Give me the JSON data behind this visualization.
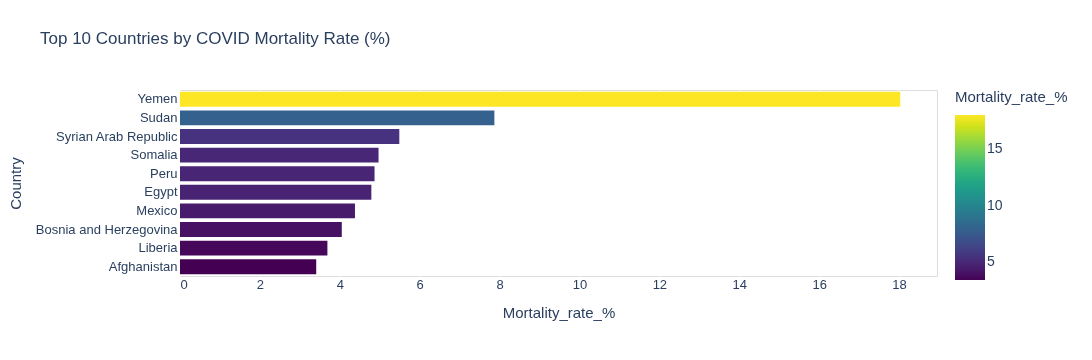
{
  "chart_data": {
    "type": "bar",
    "orientation": "horizontal",
    "title": "Top 10 Countries by COVID Mortality Rate (%)",
    "xlabel": "Mortality_rate_%",
    "ylabel": "Country",
    "clabel": "Mortality_rate_%",
    "categories": [
      "Yemen",
      "Sudan",
      "Syrian Arab Republic",
      "Somalia",
      "Peru",
      "Egypt",
      "Mexico",
      "Bosnia and Herzegovina",
      "Liberia",
      "Afghanistan"
    ],
    "values": [
      18.03,
      7.87,
      5.49,
      4.97,
      4.87,
      4.79,
      4.38,
      4.05,
      3.69,
      3.41
    ],
    "xlim": [
      0,
      18.95
    ],
    "xticks": [
      0,
      2,
      4,
      6,
      8,
      10,
      12,
      14,
      16,
      18
    ],
    "clim": [
      3.41,
      18.03
    ],
    "cticks": [
      5,
      10,
      15
    ],
    "grid": "x"
  }
}
